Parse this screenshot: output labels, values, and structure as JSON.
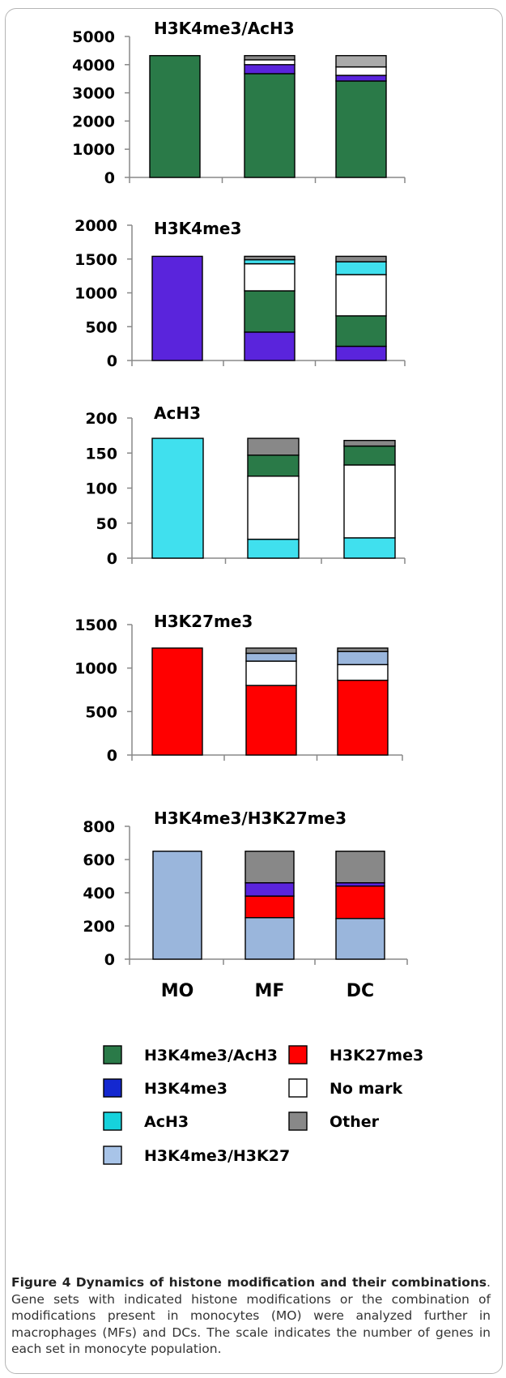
{
  "chart_data": [
    {
      "type": "bar",
      "stacked": true,
      "title": "H3K4me3/AcH3",
      "categories": [
        "MO",
        "MF",
        "DC"
      ],
      "ylim": [
        0,
        5000
      ],
      "yticks": [
        0,
        1000,
        2000,
        3000,
        4000,
        5000
      ],
      "stacks": [
        [
          {
            "series": "H3K4me3/AcH3",
            "value": 4320
          }
        ],
        [
          {
            "series": "H3K4me3/AcH3",
            "value": 3680
          },
          {
            "series": "H3K4me3",
            "value": 320
          },
          {
            "series": "No mark",
            "value": 170
          },
          {
            "series": "Other",
            "value": 150
          }
        ],
        [
          {
            "series": "H3K4me3/AcH3",
            "value": 3420
          },
          {
            "series": "H3K4me3",
            "value": 200
          },
          {
            "series": "No mark",
            "value": 300
          },
          {
            "series": "Other",
            "value": 400
          }
        ]
      ]
    },
    {
      "type": "bar",
      "stacked": true,
      "title": "H3K4me3",
      "categories": [
        "MO",
        "MF",
        "DC"
      ],
      "ylim": [
        0,
        2000
      ],
      "yticks": [
        0,
        500,
        1000,
        1500,
        2000
      ],
      "stacks": [
        [
          {
            "series": "H3K4me3",
            "value": 1540
          }
        ],
        [
          {
            "series": "H3K4me3",
            "value": 420
          },
          {
            "series": "H3K4me3/AcH3",
            "value": 610
          },
          {
            "series": "No mark",
            "value": 400
          },
          {
            "series": "AcH3",
            "value": 60
          },
          {
            "series": "Other",
            "value": 50
          }
        ],
        [
          {
            "series": "H3K4me3",
            "value": 210
          },
          {
            "series": "H3K4me3/AcH3",
            "value": 450
          },
          {
            "series": "No mark",
            "value": 610
          },
          {
            "series": "AcH3",
            "value": 190
          },
          {
            "series": "Other",
            "value": 80
          }
        ]
      ]
    },
    {
      "type": "bar",
      "stacked": true,
      "title": "AcH3",
      "categories": [
        "MO",
        "MF",
        "DC"
      ],
      "ylim": [
        0,
        200
      ],
      "yticks": [
        0,
        50,
        100,
        150,
        200
      ],
      "stacks": [
        [
          {
            "series": "AcH3",
            "value": 171
          }
        ],
        [
          {
            "series": "AcH3",
            "value": 27
          },
          {
            "series": "No mark",
            "value": 90
          },
          {
            "series": "H3K4me3/AcH3",
            "value": 30
          },
          {
            "series": "Other",
            "value": 24
          }
        ],
        [
          {
            "series": "AcH3",
            "value": 29
          },
          {
            "series": "No mark",
            "value": 104
          },
          {
            "series": "H3K4me3/AcH3",
            "value": 27
          },
          {
            "series": "Other",
            "value": 8
          }
        ]
      ]
    },
    {
      "type": "bar",
      "stacked": true,
      "title": "H3K27me3",
      "categories": [
        "MO",
        "MF",
        "DC"
      ],
      "ylim": [
        0,
        1500
      ],
      "yticks": [
        0,
        500,
        1000,
        1500
      ],
      "stacks": [
        [
          {
            "series": "H3K27me3",
            "value": 1230
          }
        ],
        [
          {
            "series": "H3K27me3",
            "value": 800
          },
          {
            "series": "No mark",
            "value": 280
          },
          {
            "series": "H3K4me3/H3K27",
            "value": 90
          },
          {
            "series": "Other",
            "value": 60
          }
        ],
        [
          {
            "series": "H3K27me3",
            "value": 860
          },
          {
            "series": "No mark",
            "value": 180
          },
          {
            "series": "H3K4me3/H3K27",
            "value": 150
          },
          {
            "series": "Other",
            "value": 40
          }
        ]
      ]
    },
    {
      "type": "bar",
      "stacked": true,
      "title": "H3K4me3/H3K27me3",
      "categories": [
        "MO",
        "MF",
        "DC"
      ],
      "ylim": [
        0,
        800
      ],
      "yticks": [
        0,
        200,
        400,
        600,
        800
      ],
      "stacks": [
        [
          {
            "series": "H3K4me3/H3K27",
            "value": 650
          }
        ],
        [
          {
            "series": "H3K4me3/H3K27",
            "value": 250
          },
          {
            "series": "H3K27me3",
            "value": 130
          },
          {
            "series": "H3K4me3",
            "value": 80
          },
          {
            "series": "Other",
            "value": 190
          }
        ],
        [
          {
            "series": "H3K4me3/H3K27",
            "value": 245
          },
          {
            "series": "H3K27me3",
            "value": 195
          },
          {
            "series": "H3K4me3",
            "value": 20
          },
          {
            "series": "Other",
            "value": 190
          }
        ]
      ]
    }
  ],
  "legend": [
    {
      "name": "H3K4me3/AcH3",
      "color": "#2a7a48"
    },
    {
      "name": "H3K27me3",
      "color": "#ff0000"
    },
    {
      "name": "H3K4me3",
      "color": "#1428d0"
    },
    {
      "name": "No mark",
      "color": "#ffffff"
    },
    {
      "name": "AcH3",
      "color": "#16d2dc"
    },
    {
      "name": "Other",
      "color": "#888888"
    },
    {
      "name": "H3K4me3/H3K27",
      "color": "#a8c4e8"
    }
  ],
  "bar_colors": {
    "H3K4me3/AcH3": "#2a7a48",
    "H3K4me3": "#5a24dc",
    "AcH3": "#40e0ee",
    "No mark": "#ffffff",
    "Other": "#888888",
    "H3K27me3": "#ff0000",
    "H3K4me3/H3K27": "#9ab6dc",
    "Other-light": "#aaaaaa"
  },
  "caption": {
    "label": "Figure 4",
    "title": "Dynamics of histone modification and their combinations",
    "text": ". Gene sets with indicated histone modifications or the combination of modifications present in monocytes (MO) were analyzed further in macrophages (MFs) and DCs. The scale indicates the number of genes in each set in monocyte population."
  }
}
